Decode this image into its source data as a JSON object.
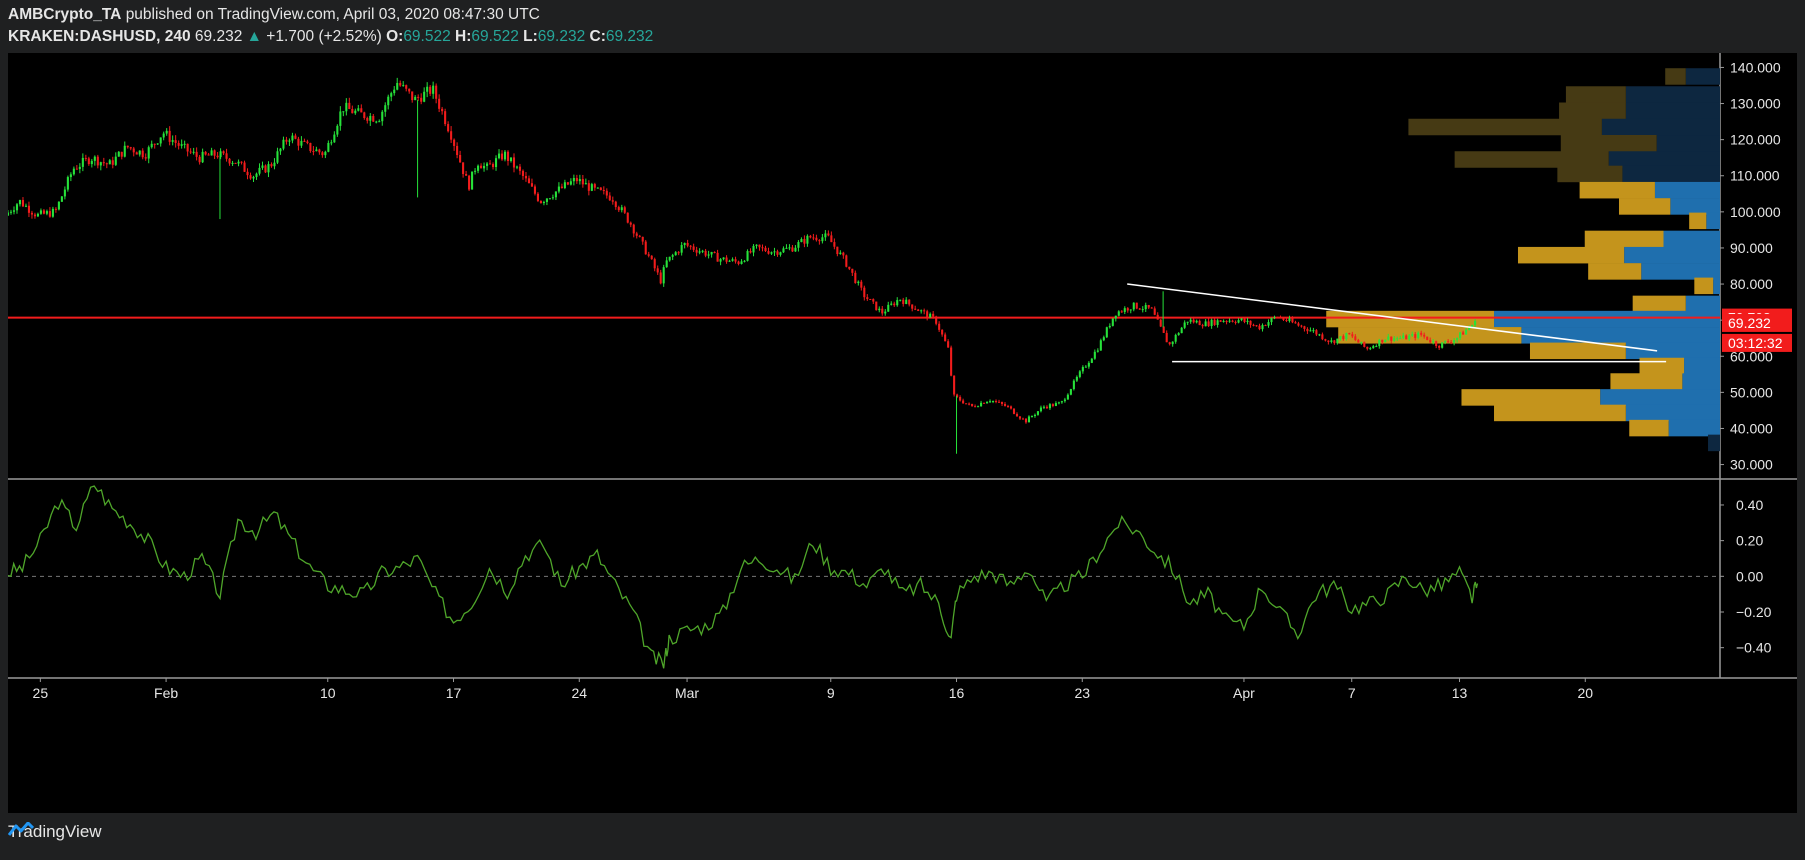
{
  "header": {
    "author": "AMBCrypto_TA",
    "published_text": "published on TradingView.com, April 03, 2020 08:47:30 UTC",
    "symbol": "KRAKEN:DASHUSD, 240",
    "last": "69.232",
    "change": "+1.700 (+2.52%)",
    "open_label": "O:",
    "open": "69.522",
    "high_label": "H:",
    "high": "69.522",
    "low_label": "L:",
    "low": "69.232",
    "close_label": "C:",
    "close": "69.232"
  },
  "footer": {
    "brand": "TradingView"
  },
  "colors": {
    "up": "#26e23a",
    "down": "#f21c1c",
    "red_line": "#f21c1c",
    "vp_up": "#1f6fae",
    "vp_down": "#c4941c",
    "vp_up_dim": "#0d2740",
    "vp_down_dim": "#463a14",
    "oscillator": "#4fa62a",
    "label_red": "#f21c1c"
  },
  "chart_data": {
    "type": "candlestick",
    "symbol": "KRAKEN:DASHUSD",
    "interval": "240",
    "x_tick_labels": [
      "25",
      "Feb",
      "10",
      "17",
      "24",
      "Mar",
      "9",
      "16",
      "23",
      "Apr",
      "7",
      "13",
      "20"
    ],
    "x_tick_days": [
      -7,
      0,
      9,
      16,
      23,
      29,
      37,
      44,
      51,
      60,
      66,
      72,
      79
    ],
    "x_range_days": [
      -8.8,
      86.5
    ],
    "price_axis": {
      "ylim": [
        26,
        144
      ],
      "ticks": [
        30,
        40,
        50,
        60,
        70,
        80,
        90,
        100,
        110,
        120,
        130,
        140
      ],
      "tick_labels": [
        "30.000",
        "40.000",
        "50.000",
        "60.000",
        "70.000",
        "80.000",
        "90.000",
        "100.000",
        "110.000",
        "120.000",
        "130.000",
        "140.000"
      ]
    },
    "price_labels": [
      {
        "value": 70.708,
        "text": "70.708"
      },
      {
        "value": 69.232,
        "text": "69.232"
      },
      {
        "text": "03:12:32"
      }
    ],
    "horizontal_line": 70.708,
    "price_path": [
      [
        -8.8,
        99
      ],
      [
        -8,
        103
      ],
      [
        -7,
        99
      ],
      [
        -6,
        100
      ],
      [
        -5,
        112
      ],
      [
        -4,
        115
      ],
      [
        -3,
        113
      ],
      [
        -2,
        118
      ],
      [
        -1,
        116
      ],
      [
        0,
        122
      ],
      [
        1,
        118
      ],
      [
        2,
        115
      ],
      [
        3,
        116
      ],
      [
        4,
        114
      ],
      [
        5,
        110
      ],
      [
        6,
        113
      ],
      [
        7,
        121
      ],
      [
        8,
        118
      ],
      [
        9,
        116
      ],
      [
        10,
        129
      ],
      [
        11,
        127
      ],
      [
        12,
        126
      ],
      [
        13,
        136
      ],
      [
        14,
        131
      ],
      [
        15,
        134
      ],
      [
        16,
        122
      ],
      [
        17,
        107
      ],
      [
        17.5,
        114
      ],
      [
        18,
        112
      ],
      [
        19,
        116
      ],
      [
        20,
        110
      ],
      [
        21,
        103
      ],
      [
        22,
        106
      ],
      [
        23,
        109
      ],
      [
        24,
        106
      ],
      [
        25,
        104
      ],
      [
        26,
        97
      ],
      [
        27,
        88
      ],
      [
        27.7,
        81
      ],
      [
        28,
        86
      ],
      [
        29,
        91
      ],
      [
        30,
        89
      ],
      [
        31,
        87
      ],
      [
        32,
        86
      ],
      [
        33,
        90
      ],
      [
        34,
        89
      ],
      [
        35,
        90
      ],
      [
        36,
        93
      ],
      [
        37,
        93
      ],
      [
        38,
        86
      ],
      [
        39,
        77
      ],
      [
        40,
        72
      ],
      [
        41,
        76
      ],
      [
        42,
        73
      ],
      [
        43,
        70
      ],
      [
        43.7,
        62
      ],
      [
        44,
        49
      ],
      [
        45,
        46
      ],
      [
        46,
        48
      ],
      [
        47,
        46
      ],
      [
        48,
        42
      ],
      [
        49,
        46
      ],
      [
        50,
        47
      ],
      [
        51,
        55
      ],
      [
        52,
        62
      ],
      [
        53,
        72
      ],
      [
        54,
        74
      ],
      [
        55,
        73
      ],
      [
        56,
        63
      ],
      [
        57,
        70
      ],
      [
        58,
        69
      ],
      [
        59,
        70
      ],
      [
        60,
        70
      ],
      [
        61,
        68
      ],
      [
        62,
        71
      ],
      [
        63,
        69
      ],
      [
        64,
        67
      ],
      [
        65,
        64
      ],
      [
        66,
        66
      ],
      [
        67,
        62
      ],
      [
        68,
        65
      ],
      [
        69,
        65
      ],
      [
        70,
        66
      ],
      [
        71,
        63
      ],
      [
        72,
        65
      ],
      [
        72.7,
        68
      ],
      [
        73,
        69.2
      ]
    ],
    "candle_wicks": [
      {
        "day": 3,
        "low": 98
      },
      {
        "day": 14,
        "low": 104
      },
      {
        "day": 44,
        "low": 33
      },
      {
        "day": 55.5,
        "high": 78
      }
    ],
    "trendlines": [
      {
        "from": [
          53.5,
          80
        ],
        "to": [
          83.0,
          61.5
        ],
        "color": "#ffffff"
      },
      {
        "from": [
          56.0,
          58.5
        ],
        "to": [
          83.5,
          58.5
        ],
        "color": "#ffffff"
      }
    ],
    "volume_profile": {
      "rows": [
        {
          "price": 137.5,
          "up": 0.02,
          "down": 0.012,
          "dim": true
        },
        {
          "price": 132.5,
          "up": 0.055,
          "down": 0.035,
          "dim": true
        },
        {
          "price": 128.0,
          "up": 0.055,
          "down": 0.039,
          "dim": true
        },
        {
          "price": 123.5,
          "up": 0.069,
          "down": 0.113,
          "dim": true
        },
        {
          "price": 119.0,
          "up": 0.037,
          "down": 0.056,
          "dim": true
        },
        {
          "price": 114.5,
          "up": 0.065,
          "down": 0.09,
          "dim": true
        },
        {
          "price": 110.5,
          "up": 0.057,
          "down": 0.038,
          "dim": true
        },
        {
          "price": 106.0,
          "up": 0.038,
          "down": 0.044,
          "dim": false
        },
        {
          "price": 101.5,
          "up": 0.029,
          "down": 0.03,
          "dim": false
        },
        {
          "price": 97.5,
          "up": 0.008,
          "down": 0.01,
          "dim": false
        },
        {
          "price": 92.5,
          "up": 0.033,
          "down": 0.046,
          "dim": false
        },
        {
          "price": 88.0,
          "up": 0.056,
          "down": 0.062,
          "dim": false
        },
        {
          "price": 83.5,
          "up": 0.046,
          "down": 0.031,
          "dim": false
        },
        {
          "price": 79.5,
          "up": 0.004,
          "down": 0.011,
          "dim": false
        },
        {
          "price": 74.5,
          "up": 0.02,
          "down": 0.031,
          "dim": false
        },
        {
          "price": 70.3,
          "up": 0.132,
          "down": 0.098,
          "dim": false
        },
        {
          "price": 65.8,
          "up": 0.116,
          "down": 0.107,
          "dim": false
        },
        {
          "price": 61.5,
          "up": 0.055,
          "down": 0.056,
          "dim": false
        },
        {
          "price": 57.3,
          "up": 0.021,
          "down": 0.026,
          "dim": false
        },
        {
          "price": 53.0,
          "up": 0.022,
          "down": 0.042,
          "dim": false
        },
        {
          "price": 48.6,
          "up": 0.07,
          "down": 0.081,
          "dim": false
        },
        {
          "price": 44.3,
          "up": 0.055,
          "down": 0.077,
          "dim": false
        },
        {
          "price": 40.1,
          "up": 0.03,
          "down": 0.023,
          "dim": false
        },
        {
          "price": 36.0,
          "up": 0.007,
          "down": 0.0,
          "dim": true
        }
      ]
    },
    "oscillator": {
      "ylim": [
        -0.57,
        0.54
      ],
      "ticks": [
        0.4,
        0.2,
        0.0,
        -0.2,
        -0.4
      ],
      "tick_labels": [
        "0.40",
        "0.20",
        "0.00",
        "−0.20",
        "−0.40"
      ],
      "zero_line": 0.0,
      "points": [
        [
          -8.8,
          0.02
        ],
        [
          -8,
          0.05
        ],
        [
          -7,
          0.2
        ],
        [
          -6,
          0.42
        ],
        [
          -5,
          0.28
        ],
        [
          -4,
          0.52
        ],
        [
          -3,
          0.38
        ],
        [
          -2,
          0.3
        ],
        [
          -1,
          0.2
        ],
        [
          0,
          0.05
        ],
        [
          1,
          0.0
        ],
        [
          2,
          0.1
        ],
        [
          3,
          -0.1
        ],
        [
          4,
          0.32
        ],
        [
          5,
          0.25
        ],
        [
          6,
          0.35
        ],
        [
          7,
          0.2
        ],
        [
          8,
          0.05
        ],
        [
          9,
          -0.05
        ],
        [
          10,
          -0.08
        ],
        [
          11,
          -0.1
        ],
        [
          12,
          0.02
        ],
        [
          13,
          0.05
        ],
        [
          14,
          0.1
        ],
        [
          15,
          -0.1
        ],
        [
          16,
          -0.25
        ],
        [
          17,
          -0.15
        ],
        [
          18,
          0.05
        ],
        [
          19,
          -0.08
        ],
        [
          20,
          0.12
        ],
        [
          21,
          0.18
        ],
        [
          22,
          -0.05
        ],
        [
          23,
          0.05
        ],
        [
          24,
          0.12
        ],
        [
          25,
          -0.05
        ],
        [
          26,
          -0.2
        ],
        [
          27,
          -0.45
        ],
        [
          27.7,
          -0.49
        ],
        [
          28,
          -0.35
        ],
        [
          29,
          -0.3
        ],
        [
          30,
          -0.28
        ],
        [
          31,
          -0.2
        ],
        [
          32,
          0.05
        ],
        [
          33,
          0.1
        ],
        [
          34,
          0.05
        ],
        [
          35,
          -0.02
        ],
        [
          36,
          0.2
        ],
        [
          37,
          0.05
        ],
        [
          38,
          0.02
        ],
        [
          39,
          -0.05
        ],
        [
          40,
          0.05
        ],
        [
          41,
          -0.1
        ],
        [
          42,
          -0.05
        ],
        [
          43,
          -0.15
        ],
        [
          43.7,
          -0.35
        ],
        [
          44,
          -0.1
        ],
        [
          45,
          0.0
        ],
        [
          46,
          0.02
        ],
        [
          47,
          -0.05
        ],
        [
          48,
          0.05
        ],
        [
          49,
          -0.15
        ],
        [
          50,
          -0.05
        ],
        [
          51,
          0.0
        ],
        [
          52,
          0.15
        ],
        [
          53,
          0.3
        ],
        [
          54,
          0.26
        ],
        [
          55,
          0.15
        ],
        [
          56,
          0.05
        ],
        [
          57,
          -0.15
        ],
        [
          58,
          -0.1
        ],
        [
          59,
          -0.25
        ],
        [
          60,
          -0.28
        ],
        [
          61,
          -0.05
        ],
        [
          62,
          -0.2
        ],
        [
          63,
          -0.32
        ],
        [
          64,
          -0.1
        ],
        [
          65,
          -0.05
        ],
        [
          66,
          -0.18
        ],
        [
          67,
          -0.15
        ],
        [
          68,
          -0.1
        ],
        [
          69,
          0.0
        ],
        [
          70,
          -0.08
        ],
        [
          71,
          -0.05
        ],
        [
          72,
          0.02
        ],
        [
          72.7,
          -0.12
        ],
        [
          73,
          -0.04
        ]
      ]
    }
  }
}
